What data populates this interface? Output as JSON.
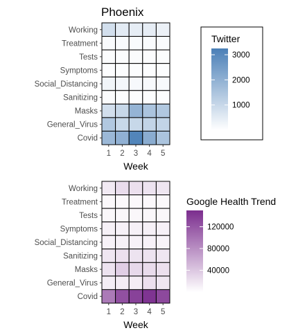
{
  "chart_data": [
    {
      "type": "heatmap",
      "title": "Phoenix",
      "xlabel": "Week",
      "ylabel": "",
      "x_categories": [
        "1",
        "2",
        "3",
        "4",
        "5"
      ],
      "y_categories": [
        "Working",
        "Treatment",
        "Tests",
        "Symptoms",
        "Social_Distancing",
        "Sanitizing",
        "Masks",
        "General_Virus",
        "Covid"
      ],
      "values": [
        [
          800,
          500,
          450,
          450,
          350
        ],
        [
          100,
          100,
          100,
          100,
          100
        ],
        [
          80,
          80,
          80,
          80,
          80
        ],
        [
          60,
          60,
          60,
          60,
          60
        ],
        [
          250,
          200,
          150,
          150,
          150
        ],
        [
          80,
          60,
          60,
          60,
          60
        ],
        [
          800,
          1000,
          1900,
          1500,
          1400
        ],
        [
          1400,
          1000,
          1000,
          1100,
          1100
        ],
        [
          1800,
          2000,
          3100,
          2100,
          1500
        ]
      ],
      "legend": {
        "title": "Twitter",
        "min": 0,
        "max": 3250,
        "breaks": [
          1000,
          2000,
          3000
        ],
        "colors": [
          "#ffffff",
          "#4a7fb7"
        ],
        "placement": "right"
      }
    },
    {
      "type": "heatmap",
      "title": "",
      "xlabel": "Week",
      "ylabel": "",
      "x_categories": [
        "1",
        "2",
        "3",
        "4",
        "5"
      ],
      "y_categories": [
        "Working",
        "Treatment",
        "Tests",
        "Symptoms",
        "Social_Distancing",
        "Sanitizing",
        "Masks",
        "General_Virus",
        "Covid"
      ],
      "values": [
        [
          15000,
          25000,
          22000,
          20000,
          18000
        ],
        [
          5000,
          5000,
          5000,
          5000,
          5000
        ],
        [
          6000,
          6000,
          6000,
          6000,
          6000
        ],
        [
          10000,
          10000,
          10000,
          10000,
          10000
        ],
        [
          9000,
          10000,
          9000,
          9000,
          8000
        ],
        [
          18000,
          22000,
          20000,
          20000,
          18000
        ],
        [
          20000,
          35000,
          27000,
          25000,
          22000
        ],
        [
          12000,
          13000,
          13000,
          22000,
          17000
        ],
        [
          95000,
          125000,
          135000,
          145000,
          130000
        ]
      ],
      "legend": {
        "title": "Google Health Trend",
        "min": 0,
        "max": 150000,
        "breaks": [
          40000,
          80000,
          120000
        ],
        "colors": [
          "#ffffff",
          "#7b2d8e"
        ],
        "placement": "right"
      }
    }
  ]
}
